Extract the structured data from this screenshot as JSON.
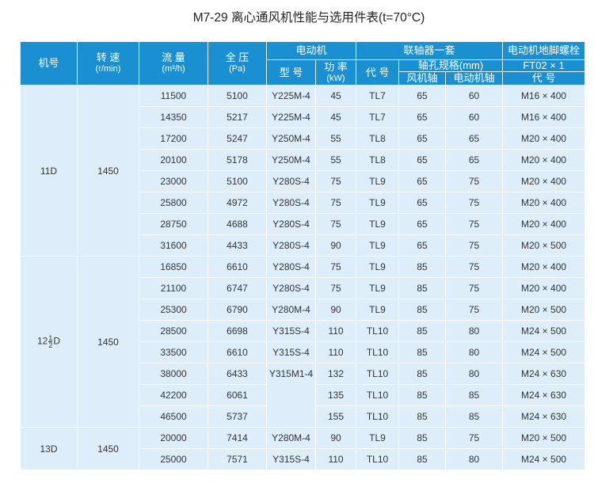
{
  "title": "M7-29 离心通风机性能与选用件表(t=70°C)",
  "headers": {
    "model_no": "机号",
    "speed": "转 速",
    "speed_unit": "(r/min)",
    "flow": "流 量",
    "flow_unit": "(m³/h)",
    "pressure": "全 压",
    "pressure_unit": "(Pa)",
    "motor": "电动机",
    "motor_type": "型 号",
    "motor_power": "功 率",
    "motor_power_unit": "(kW)",
    "coupling": "联轴器一套",
    "coupling_code": "代 号",
    "bore_spec": "轴孔规格(mm)",
    "fan_shaft": "风机轴",
    "motor_shaft": "电动机轴",
    "bolt": "电动机地脚螺栓",
    "bolt_spec": "FT02 × 1",
    "bolt_code": "代 号"
  },
  "groups": [
    {
      "model": "11D",
      "speed": "1450",
      "rows": [
        [
          "11500",
          "5100",
          "Y225M-4",
          "45",
          "TL7",
          "65",
          "60",
          "M16 × 400"
        ],
        [
          "14350",
          "5217",
          "Y225M-4",
          "45",
          "TL7",
          "65",
          "60",
          "M16 × 400"
        ],
        [
          "17200",
          "5247",
          "Y250M-4",
          "55",
          "TL8",
          "65",
          "65",
          "M20 × 400"
        ],
        [
          "20100",
          "5178",
          "Y250M-4",
          "55",
          "TL8",
          "65",
          "65",
          "M20 × 400"
        ],
        [
          "23000",
          "5100",
          "Y280S-4",
          "75",
          "TL9",
          "65",
          "75",
          "M20 × 400"
        ],
        [
          "25800",
          "4972",
          "Y280S-4",
          "75",
          "TL9",
          "65",
          "75",
          "M20 × 400"
        ],
        [
          "28750",
          "4688",
          "Y280S-4",
          "75",
          "TL9",
          "65",
          "75",
          "M20 × 400"
        ],
        [
          "31600",
          "4433",
          "Y280S-4",
          "90",
          "TL9",
          "65",
          "75",
          "M20 × 500"
        ]
      ]
    },
    {
      "model": "12",
      "model_frac_num": "1",
      "model_frac_den": "2",
      "model_suffix": "D",
      "speed": "1450",
      "rows": [
        [
          "16850",
          "6610",
          "Y280S-4",
          "75",
          "TL9",
          "85",
          "75",
          "M20 × 400"
        ],
        [
          "21100",
          "6747",
          "Y280S-4",
          "75",
          "TL9",
          "85",
          "75",
          "M20 × 400"
        ],
        [
          "25300",
          "6790",
          "Y280M-4",
          "90",
          "TL9",
          "85",
          "75",
          "M20 × 500"
        ],
        [
          "28500",
          "6698",
          "Y315S-4",
          "110",
          "TL10",
          "85",
          "80",
          "M24 × 500"
        ],
        [
          "33500",
          "6610",
          "Y315S-4",
          "110",
          "TL10",
          "85",
          "80",
          "M24 × 500"
        ],
        [
          "38000",
          "6433",
          "Y315M1-4",
          "132",
          "TL10",
          "85",
          "80",
          "M24 × 630"
        ],
        [
          "42200",
          "6061",
          "",
          "135",
          "TL10",
          "85",
          "85",
          "M24 × 630"
        ],
        [
          "46500",
          "5737",
          "",
          "155",
          "TL10",
          "85",
          "85",
          "M24 × 630"
        ]
      ]
    },
    {
      "model": "13D",
      "speed": "1450",
      "rows": [
        [
          "20000",
          "7414",
          "Y280M-4",
          "90",
          "TL9",
          "85",
          "75",
          "M20 × 500"
        ],
        [
          "25000",
          "7571",
          "Y315S-4",
          "110",
          "TL10",
          "85",
          "80",
          "M24 × 500"
        ]
      ]
    }
  ]
}
